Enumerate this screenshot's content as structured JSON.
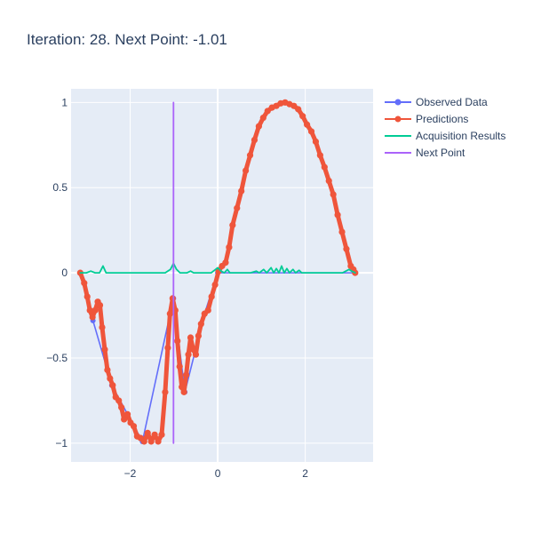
{
  "chart_data": {
    "type": "line",
    "title": "Iteration: 28. Next Point: -1.01",
    "xlabel": "",
    "ylabel": "",
    "xlim": [
      -3.35,
      3.55
    ],
    "ylim": [
      -1.11,
      1.08
    ],
    "grid": true,
    "legend_position": "top-right",
    "x_ticks": [
      {
        "value": -2,
        "label": "−2"
      },
      {
        "value": 0,
        "label": "0"
      },
      {
        "value": 2,
        "label": "2"
      }
    ],
    "y_ticks": [
      {
        "value": -1,
        "label": "−1"
      },
      {
        "value": -0.5,
        "label": "−0.5"
      },
      {
        "value": 0,
        "label": "0"
      },
      {
        "value": 0.5,
        "label": "0.5"
      },
      {
        "value": 1,
        "label": "1"
      }
    ],
    "colors": {
      "plot_bg": "#e5ecf6",
      "grid": "#ffffff",
      "observed": "#636efa",
      "predictions": "#ef553b",
      "acquisition": "#00cc96",
      "next_point": "#ab63fa"
    },
    "series": [
      {
        "name": "Observed Data",
        "mode": "lines+markers",
        "points": [
          [
            -3.14,
            0.0
          ],
          [
            -2.85,
            -0.28
          ],
          [
            -2.42,
            -0.66
          ],
          [
            -1.72,
            -0.99
          ],
          [
            -1.01,
            -0.15
          ],
          [
            -0.75,
            -0.7
          ],
          [
            -0.3,
            -0.24
          ],
          [
            0.0,
            0.0
          ],
          [
            3.14,
            0.0
          ]
        ]
      },
      {
        "name": "Predictions",
        "mode": "lines+markers",
        "points": [
          [
            -3.14,
            0.0
          ],
          [
            -3.05,
            -0.06
          ],
          [
            -2.98,
            -0.14
          ],
          [
            -2.92,
            -0.22
          ],
          [
            -2.86,
            -0.26
          ],
          [
            -2.8,
            -0.22
          ],
          [
            -2.74,
            -0.17
          ],
          [
            -2.69,
            -0.19
          ],
          [
            -2.64,
            -0.32
          ],
          [
            -2.58,
            -0.45
          ],
          [
            -2.52,
            -0.57
          ],
          [
            -2.46,
            -0.62
          ],
          [
            -2.4,
            -0.66
          ],
          [
            -2.33,
            -0.73
          ],
          [
            -2.26,
            -0.75
          ],
          [
            -2.2,
            -0.79
          ],
          [
            -2.14,
            -0.86
          ],
          [
            -2.06,
            -0.83
          ],
          [
            -1.99,
            -0.88
          ],
          [
            -1.92,
            -0.9
          ],
          [
            -1.84,
            -0.96
          ],
          [
            -1.76,
            -0.97
          ],
          [
            -1.68,
            -0.99
          ],
          [
            -1.6,
            -0.94
          ],
          [
            -1.52,
            -0.99
          ],
          [
            -1.44,
            -0.95
          ],
          [
            -1.36,
            -0.99
          ],
          [
            -1.28,
            -0.95
          ],
          [
            -1.2,
            -0.7
          ],
          [
            -1.14,
            -0.44
          ],
          [
            -1.09,
            -0.24
          ],
          [
            -1.03,
            -0.15
          ],
          [
            -0.97,
            -0.22
          ],
          [
            -0.92,
            -0.4
          ],
          [
            -0.87,
            -0.55
          ],
          [
            -0.82,
            -0.67
          ],
          [
            -0.77,
            -0.7
          ],
          [
            -0.72,
            -0.6
          ],
          [
            -0.67,
            -0.48
          ],
          [
            -0.62,
            -0.38
          ],
          [
            -0.56,
            -0.45
          ],
          [
            -0.5,
            -0.48
          ],
          [
            -0.44,
            -0.37
          ],
          [
            -0.38,
            -0.3
          ],
          [
            -0.3,
            -0.24
          ],
          [
            -0.22,
            -0.22
          ],
          [
            -0.14,
            -0.14
          ],
          [
            -0.06,
            -0.07
          ],
          [
            0.02,
            0.01
          ],
          [
            0.1,
            0.04
          ],
          [
            0.18,
            0.06
          ],
          [
            0.26,
            0.15
          ],
          [
            0.34,
            0.28
          ],
          [
            0.44,
            0.38
          ],
          [
            0.54,
            0.48
          ],
          [
            0.64,
            0.6
          ],
          [
            0.74,
            0.69
          ],
          [
            0.84,
            0.78
          ],
          [
            0.94,
            0.86
          ],
          [
            1.04,
            0.91
          ],
          [
            1.14,
            0.95
          ],
          [
            1.24,
            0.97
          ],
          [
            1.34,
            0.98
          ],
          [
            1.44,
            0.995
          ],
          [
            1.54,
            1.0
          ],
          [
            1.64,
            0.99
          ],
          [
            1.74,
            0.98
          ],
          [
            1.84,
            0.96
          ],
          [
            1.94,
            0.92
          ],
          [
            2.04,
            0.87
          ],
          [
            2.14,
            0.83
          ],
          [
            2.24,
            0.77
          ],
          [
            2.34,
            0.69
          ],
          [
            2.44,
            0.62
          ],
          [
            2.54,
            0.54
          ],
          [
            2.64,
            0.46
          ],
          [
            2.74,
            0.34
          ],
          [
            2.84,
            0.24
          ],
          [
            2.94,
            0.14
          ],
          [
            3.04,
            0.04
          ],
          [
            3.1,
            0.02
          ],
          [
            3.14,
            0.0
          ]
        ]
      },
      {
        "name": "Acquisition Results",
        "mode": "lines",
        "points": [
          [
            -3.14,
            0.0
          ],
          [
            -3.0,
            0.0
          ],
          [
            -2.9,
            0.01
          ],
          [
            -2.8,
            0.0
          ],
          [
            -2.7,
            0.0
          ],
          [
            -2.62,
            0.04
          ],
          [
            -2.55,
            0.0
          ],
          [
            -2.3,
            0.0
          ],
          [
            -2.0,
            0.0
          ],
          [
            -1.6,
            0.0
          ],
          [
            -1.2,
            0.0
          ],
          [
            -1.08,
            0.02
          ],
          [
            -1.01,
            0.055
          ],
          [
            -0.94,
            0.02
          ],
          [
            -0.86,
            0.0
          ],
          [
            -0.7,
            0.0
          ],
          [
            -0.62,
            0.01
          ],
          [
            -0.55,
            0.0
          ],
          [
            -0.3,
            0.0
          ],
          [
            -0.15,
            0.0
          ],
          [
            -0.05,
            0.02
          ],
          [
            0.0,
            0.03
          ],
          [
            0.08,
            0.01
          ],
          [
            0.15,
            0.0
          ],
          [
            0.22,
            0.02
          ],
          [
            0.28,
            0.0
          ],
          [
            0.45,
            0.0
          ],
          [
            0.75,
            0.0
          ],
          [
            0.88,
            0.01
          ],
          [
            0.95,
            0.0
          ],
          [
            1.05,
            0.02
          ],
          [
            1.12,
            0.0
          ],
          [
            1.22,
            0.03
          ],
          [
            1.28,
            0.0
          ],
          [
            1.34,
            0.025
          ],
          [
            1.4,
            0.0
          ],
          [
            1.46,
            0.04
          ],
          [
            1.52,
            0.0
          ],
          [
            1.58,
            0.025
          ],
          [
            1.64,
            0.0
          ],
          [
            1.72,
            0.02
          ],
          [
            1.78,
            0.0
          ],
          [
            1.86,
            0.015
          ],
          [
            1.92,
            0.0
          ],
          [
            2.1,
            0.0
          ],
          [
            2.5,
            0.0
          ],
          [
            2.85,
            0.0
          ],
          [
            3.0,
            0.02
          ],
          [
            3.06,
            0.01
          ],
          [
            3.14,
            0.0
          ]
        ]
      },
      {
        "name": "Next Point",
        "mode": "lines",
        "points": [
          [
            -1.01,
            -1.0
          ],
          [
            -1.01,
            1.0
          ]
        ]
      }
    ]
  }
}
